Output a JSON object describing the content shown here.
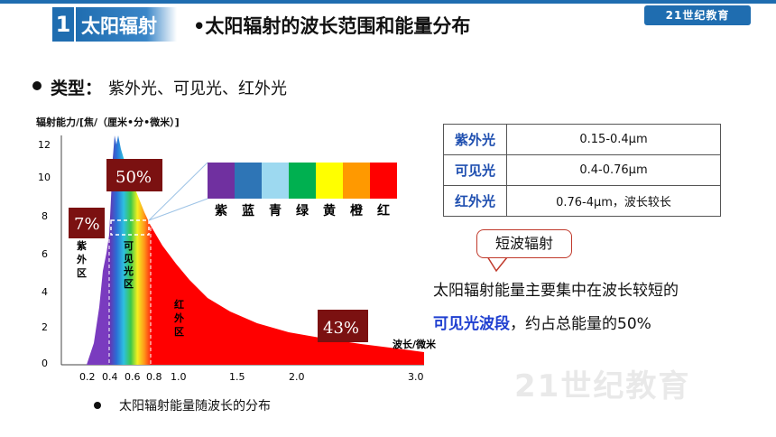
{
  "header": {
    "section_number": "1",
    "section_title": "太阳辐射",
    "title": "•太阳辐射的波长范围和能量分布",
    "logo_text": "21世纪教育"
  },
  "types": {
    "label": "类型：",
    "value": "紫外光、可见光、红外光"
  },
  "chart": {
    "y_axis_title": "辐射能力/[焦/（厘米•分•微米）]",
    "y_ticks": [
      "12",
      "10",
      "8",
      "6",
      "4",
      "2",
      "0"
    ],
    "x_ticks": [
      "0.2",
      "0.4",
      "0.6",
      "0.8",
      "1.0",
      "1.5",
      "2.0",
      "3.0"
    ],
    "x_axis_title": "波长/微米",
    "uv_region_label": [
      "紫",
      "外",
      "区"
    ],
    "visible_region_label": [
      "可",
      "见",
      "光",
      "区"
    ],
    "ir_region_label": [
      "红",
      "外",
      "区"
    ],
    "pct_uv": "7%",
    "pct_visible": "50%",
    "pct_ir": "43%",
    "spectrum_labels": [
      "紫",
      "蓝",
      "青",
      "绿",
      "黄",
      "橙",
      "红"
    ],
    "spectrum_colors": [
      "#7030a0",
      "#2e75b6",
      "#9dd9f0",
      "#00b050",
      "#ffff00",
      "#ff9900",
      "#ff0000"
    ]
  },
  "table": {
    "rows": [
      {
        "type": "紫外光",
        "range": "0.15-0.4μm"
      },
      {
        "type": "可见光",
        "range": "0.4-0.76μm"
      },
      {
        "type": "红外光",
        "range": "0.76-4μm，波长较长"
      }
    ]
  },
  "callout": {
    "text": "短波辐射"
  },
  "description": {
    "line1": "太阳辐射能量主要集中在波长较短的",
    "line2_bold": "可见光波段",
    "line2_rest": "，约占总能量的50%"
  },
  "caption": "太阳辐射能量随波长的分布",
  "watermark": "21世纪教育"
}
